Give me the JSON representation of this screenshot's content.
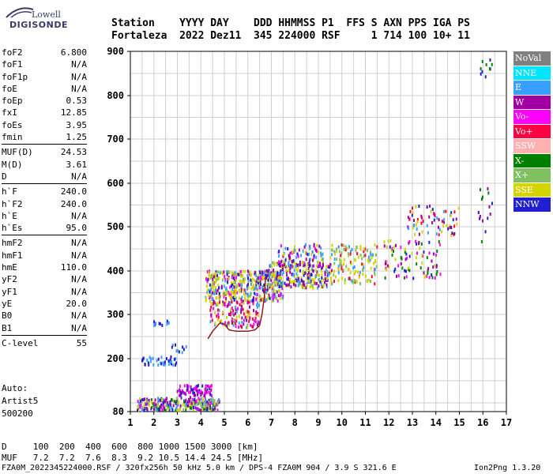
{
  "logo": {
    "top": "Lowell",
    "bottom": "DIGISONDE"
  },
  "header": {
    "row1": "Station    YYYY DAY    DDD HHMMSS P1  FFS S AXN PPS IGA PS",
    "row2": "Fortaleza  2022 Dez11  345 224000 RSF     1 714 100 10+ 11"
  },
  "parameters": [
    [
      {
        "label": "foF2",
        "value": "6.800"
      },
      {
        "label": "foF1",
        "value": "N/A"
      },
      {
        "label": "foF1p",
        "value": "N/A"
      },
      {
        "label": "foE",
        "value": "N/A"
      },
      {
        "label": "foEp",
        "value": "0.53"
      },
      {
        "label": "fxI",
        "value": "12.85"
      },
      {
        "label": "foEs",
        "value": "3.95"
      },
      {
        "label": "fmin",
        "value": "1.25"
      }
    ],
    [
      {
        "label": "MUF(D)",
        "value": "24.53"
      },
      {
        "label": "M(D)",
        "value": "3.61"
      },
      {
        "label": "D",
        "value": "N/A"
      }
    ],
    [
      {
        "label": "h`F",
        "value": "240.0"
      },
      {
        "label": "h`F2",
        "value": "240.0"
      },
      {
        "label": "h`E",
        "value": "N/A"
      },
      {
        "label": "h`Es",
        "value": "95.0"
      }
    ],
    [
      {
        "label": "hmF2",
        "value": "N/A"
      },
      {
        "label": "hmF1",
        "value": "N/A"
      },
      {
        "label": "hmE",
        "value": "110.0"
      },
      {
        "label": "yF2",
        "value": "N/A"
      },
      {
        "label": "yF1",
        "value": "N/A"
      },
      {
        "label": "yE",
        "value": "20.0"
      },
      {
        "label": "B0",
        "value": "N/A"
      },
      {
        "label": "B1",
        "value": "N/A"
      }
    ],
    [
      {
        "label": "C-level",
        "value": "55"
      }
    ]
  ],
  "auto": {
    "line1": "Auto:",
    "line2": "Artist5",
    "line3": "500200"
  },
  "mufTable": {
    "row1": "D     100  200  400  600  800 1000 1500 3000 [km]",
    "row2": "MUF   7.2  7.2  7.6  8.3  9.2 10.5 14.4 24.5 [MHz]"
  },
  "footer": {
    "left": "FZA0M_2022345224000.RSF / 320fx256h 50 kHz 5.0 km / DPS-4 FZA0M 904 / 3.9 S 321.6 E",
    "right": "Ion2Png 1.3.20"
  },
  "legend": [
    {
      "label": "NoVal",
      "color": "#808080"
    },
    {
      "label": "NNE",
      "color": "#00e5ff"
    },
    {
      "label": "E",
      "color": "#3aa0ff"
    },
    {
      "label": "W",
      "color": "#a000a0"
    },
    {
      "label": "Vo-",
      "color": "#ff00ff"
    },
    {
      "label": "Vo+",
      "color": "#ff0040"
    },
    {
      "label": "SSW",
      "color": "#ffb0b0"
    },
    {
      "label": "X-",
      "color": "#008000"
    },
    {
      "label": "X+",
      "color": "#80c060"
    },
    {
      "label": "SSE",
      "color": "#d4d400"
    },
    {
      "label": "NNW",
      "color": "#2020d0"
    }
  ],
  "chart_data": {
    "type": "scatter",
    "xlim": [
      1,
      17
    ],
    "ylim": [
      80,
      900
    ],
    "xticks": [
      "1",
      "2",
      "3",
      "4",
      "5",
      "6",
      "7",
      "8",
      "9",
      "10",
      "11",
      "12",
      "13",
      "14",
      "15",
      "16",
      "17"
    ],
    "yticks": [
      "80",
      "200",
      "300",
      "400",
      "500",
      "600",
      "700",
      "800",
      "900"
    ],
    "grid": true,
    "legend_position": "right",
    "traces": [
      {
        "name": "trace",
        "color": "#8b1a1a",
        "points": [
          [
            4.3,
            245
          ],
          [
            4.5,
            262
          ],
          [
            4.8,
            280
          ],
          [
            5.0,
            278
          ],
          [
            5.2,
            265
          ],
          [
            5.5,
            262
          ],
          [
            6.0,
            262
          ],
          [
            6.3,
            265
          ],
          [
            6.5,
            275
          ],
          [
            6.6,
            300
          ],
          [
            6.7,
            340
          ],
          [
            6.75,
            385
          ]
        ]
      }
    ],
    "clusters": [
      {
        "x": [
          1.3,
          4.8
        ],
        "y": [
          82,
          110
        ],
        "n": 300,
        "colors": [
          "#2020d0",
          "#a000a0",
          "#ff00ff",
          "#d4d400",
          "#008000",
          "#3aa0ff",
          "#80c060"
        ]
      },
      {
        "x": [
          3.0,
          4.5
        ],
        "y": [
          110,
          140
        ],
        "n": 80,
        "colors": [
          "#a000a0",
          "#ff00ff",
          "#2020d0"
        ]
      },
      {
        "x": [
          1.5,
          3.0
        ],
        "y": [
          185,
          205
        ],
        "n": 40,
        "colors": [
          "#2020d0",
          "#3aa0ff"
        ]
      },
      {
        "x": [
          1.9,
          2.7
        ],
        "y": [
          275,
          285
        ],
        "n": 12,
        "colors": [
          "#2020d0",
          "#3aa0ff"
        ]
      },
      {
        "x": [
          2.7,
          3.4
        ],
        "y": [
          212,
          232
        ],
        "n": 10,
        "colors": [
          "#2020d0",
          "#3aa0ff"
        ]
      },
      {
        "x": [
          4.2,
          7.5
        ],
        "y": [
          330,
          400
        ],
        "n": 450,
        "colors": [
          "#d4d400",
          "#d4d400",
          "#d4d400",
          "#80c060",
          "#3aa0ff",
          "#a000a0",
          "#ff00ff",
          "#2020d0"
        ]
      },
      {
        "x": [
          4.4,
          6.5
        ],
        "y": [
          270,
          330
        ],
        "n": 140,
        "colors": [
          "#ff0040",
          "#ff00ff",
          "#a000a0",
          "#3aa0ff",
          "#d4d400"
        ]
      },
      {
        "x": [
          6.8,
          9.5
        ],
        "y": [
          360,
          420
        ],
        "n": 260,
        "colors": [
          "#d4d400",
          "#d4d400",
          "#3aa0ff",
          "#2020d0",
          "#a000a0"
        ]
      },
      {
        "x": [
          7.3,
          9.2
        ],
        "y": [
          410,
          460
        ],
        "n": 100,
        "colors": [
          "#a000a0",
          "#ff00ff",
          "#2020d0",
          "#d4d400",
          "#3aa0ff"
        ]
      },
      {
        "x": [
          9.5,
          11.5
        ],
        "y": [
          370,
          460
        ],
        "n": 140,
        "colors": [
          "#d4d400",
          "#d4d400",
          "#80c060",
          "#3aa0ff",
          "#ff0040"
        ]
      },
      {
        "x": [
          11.8,
          14.2
        ],
        "y": [
          380,
          470
        ],
        "n": 90,
        "colors": [
          "#a000a0",
          "#2020d0",
          "#d4d400",
          "#008000",
          "#ff00ff"
        ]
      },
      {
        "x": [
          12.8,
          15.0
        ],
        "y": [
          480,
          550
        ],
        "n": 70,
        "colors": [
          "#2020d0",
          "#a000a0",
          "#3aa0ff",
          "#d4d400",
          "#ff0040"
        ]
      },
      {
        "x": [
          15.8,
          16.4
        ],
        "y": [
          460,
          600
        ],
        "n": 15,
        "colors": [
          "#2020d0",
          "#008000",
          "#a000a0"
        ]
      },
      {
        "x": [
          15.9,
          16.4
        ],
        "y": [
          840,
          900
        ],
        "n": 10,
        "colors": [
          "#2020d0",
          "#80c060",
          "#008000"
        ]
      }
    ]
  }
}
